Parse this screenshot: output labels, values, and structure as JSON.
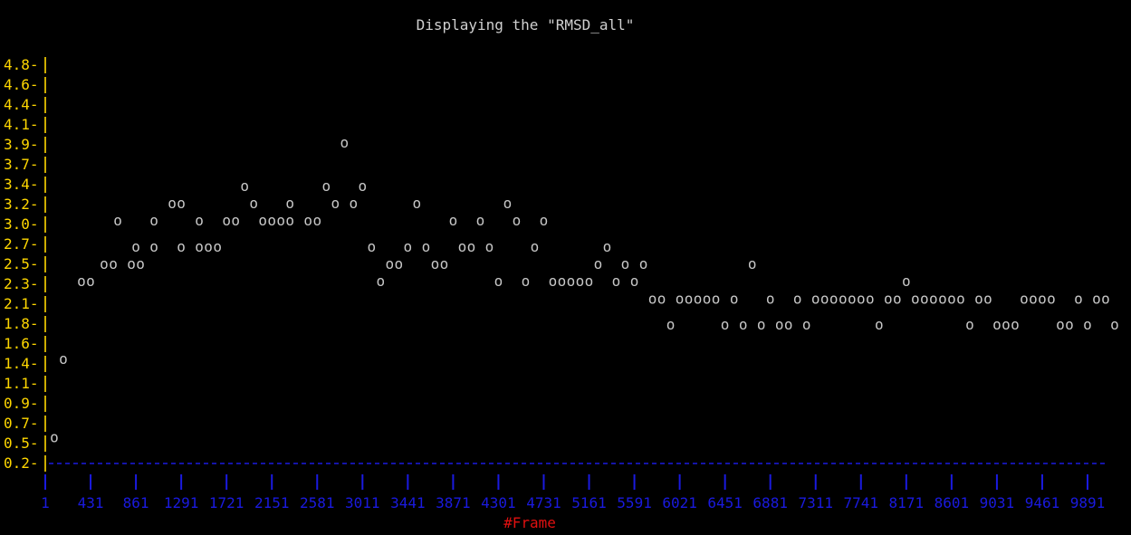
{
  "chart_data": {
    "type": "scatter",
    "title": "Displaying the \"RMSD_all\"",
    "xlabel": "#Frame",
    "ylabel": "",
    "marker": "o",
    "x_ticks": [
      "1",
      "431",
      "861",
      "1291",
      "1721",
      "2151",
      "2581",
      "3011",
      "3441",
      "3871",
      "4301",
      "4731",
      "5161",
      "5591",
      "6021",
      "6451",
      "6881",
      "7311",
      "7741",
      "8171",
      "8601",
      "9031",
      "9461",
      "9891"
    ],
    "y_ticks": [
      "4.8",
      "4.6",
      "4.4",
      "4.1",
      "3.9",
      "3.7",
      "3.4",
      "3.2",
      "3.0",
      "2.7",
      "2.5",
      "2.3",
      "2.1",
      "1.8",
      "1.6",
      "1.4",
      "1.1",
      "0.9",
      "0.7",
      "0.5",
      "0.2"
    ],
    "xlim": [
      1,
      10000
    ],
    "ylim": [
      0.2,
      4.8
    ],
    "grid": false,
    "colors": {
      "background": "#000000",
      "title": "#d0d0d0",
      "points": "#c8c8c8",
      "y_axis": "#ffd700",
      "x_axis": "#1a1adf",
      "xlabel": "#e01010"
    },
    "points": [
      {
        "x": 1,
        "y": 0.5
      },
      {
        "x": 87,
        "y": 1.4
      },
      {
        "x": 259,
        "y": 2.3
      },
      {
        "x": 345,
        "y": 2.3
      },
      {
        "x": 474,
        "y": 2.5
      },
      {
        "x": 560,
        "y": 2.5
      },
      {
        "x": 732,
        "y": 2.5
      },
      {
        "x": 818,
        "y": 2.5
      },
      {
        "x": 603,
        "y": 3.0
      },
      {
        "x": 947,
        "y": 3.0
      },
      {
        "x": 775,
        "y": 2.7
      },
      {
        "x": 947,
        "y": 2.7
      },
      {
        "x": 1119,
        "y": 3.2
      },
      {
        "x": 1205,
        "y": 3.2
      },
      {
        "x": 1205,
        "y": 2.7
      },
      {
        "x": 1377,
        "y": 3.0
      },
      {
        "x": 1377,
        "y": 2.7
      },
      {
        "x": 1463,
        "y": 2.7
      },
      {
        "x": 1549,
        "y": 2.7
      },
      {
        "x": 1635,
        "y": 3.0
      },
      {
        "x": 1721,
        "y": 3.0
      },
      {
        "x": 1807,
        "y": 3.4
      },
      {
        "x": 1893,
        "y": 3.2
      },
      {
        "x": 1979,
        "y": 3.0
      },
      {
        "x": 2065,
        "y": 3.0
      },
      {
        "x": 2151,
        "y": 3.0
      },
      {
        "x": 2237,
        "y": 3.0
      },
      {
        "x": 2237,
        "y": 3.2
      },
      {
        "x": 2409,
        "y": 3.0
      },
      {
        "x": 2495,
        "y": 3.0
      },
      {
        "x": 2581,
        "y": 3.4
      },
      {
        "x": 2667,
        "y": 3.2
      },
      {
        "x": 2753,
        "y": 3.9
      },
      {
        "x": 2839,
        "y": 3.2
      },
      {
        "x": 2925,
        "y": 3.4
      },
      {
        "x": 3011,
        "y": 2.7
      },
      {
        "x": 3097,
        "y": 2.3
      },
      {
        "x": 3183,
        "y": 2.5
      },
      {
        "x": 3269,
        "y": 2.5
      },
      {
        "x": 3355,
        "y": 2.7
      },
      {
        "x": 3441,
        "y": 3.2
      },
      {
        "x": 3527,
        "y": 2.7
      },
      {
        "x": 3613,
        "y": 2.5
      },
      {
        "x": 3699,
        "y": 2.5
      },
      {
        "x": 3785,
        "y": 3.0
      },
      {
        "x": 3871,
        "y": 2.7
      },
      {
        "x": 3957,
        "y": 2.7
      },
      {
        "x": 4043,
        "y": 3.0
      },
      {
        "x": 4129,
        "y": 2.7
      },
      {
        "x": 4215,
        "y": 2.3
      },
      {
        "x": 4301,
        "y": 3.2
      },
      {
        "x": 4387,
        "y": 3.0
      },
      {
        "x": 4473,
        "y": 2.3
      },
      {
        "x": 4559,
        "y": 2.7
      },
      {
        "x": 4645,
        "y": 3.0
      },
      {
        "x": 4731,
        "y": 2.3
      },
      {
        "x": 4817,
        "y": 2.3
      },
      {
        "x": 4903,
        "y": 2.3
      },
      {
        "x": 4989,
        "y": 2.3
      },
      {
        "x": 5075,
        "y": 2.3
      },
      {
        "x": 5161,
        "y": 2.5
      },
      {
        "x": 5247,
        "y": 2.7
      },
      {
        "x": 5333,
        "y": 2.3
      },
      {
        "x": 5419,
        "y": 2.5
      },
      {
        "x": 5505,
        "y": 2.3
      },
      {
        "x": 5591,
        "y": 2.5
      },
      {
        "x": 5677,
        "y": 2.1
      },
      {
        "x": 5763,
        "y": 2.1
      },
      {
        "x": 5849,
        "y": 1.8
      },
      {
        "x": 5935,
        "y": 2.1
      },
      {
        "x": 6021,
        "y": 2.1
      },
      {
        "x": 6107,
        "y": 2.1
      },
      {
        "x": 6193,
        "y": 2.1
      },
      {
        "x": 6279,
        "y": 2.1
      },
      {
        "x": 6365,
        "y": 1.8
      },
      {
        "x": 6451,
        "y": 2.1
      },
      {
        "x": 6537,
        "y": 1.8
      },
      {
        "x": 6623,
        "y": 2.5
      },
      {
        "x": 6709,
        "y": 1.8
      },
      {
        "x": 6795,
        "y": 2.1
      },
      {
        "x": 6881,
        "y": 1.8
      },
      {
        "x": 6967,
        "y": 1.8
      },
      {
        "x": 7053,
        "y": 2.1
      },
      {
        "x": 7139,
        "y": 1.8
      },
      {
        "x": 7225,
        "y": 2.1
      },
      {
        "x": 7311,
        "y": 2.1
      },
      {
        "x": 7397,
        "y": 2.1
      },
      {
        "x": 7483,
        "y": 2.1
      },
      {
        "x": 7569,
        "y": 2.1
      },
      {
        "x": 7655,
        "y": 2.1
      },
      {
        "x": 7741,
        "y": 2.1
      },
      {
        "x": 7827,
        "y": 1.8
      },
      {
        "x": 7913,
        "y": 2.1
      },
      {
        "x": 7999,
        "y": 2.1
      },
      {
        "x": 8085,
        "y": 2.3
      },
      {
        "x": 8171,
        "y": 2.1
      },
      {
        "x": 8257,
        "y": 2.1
      },
      {
        "x": 8343,
        "y": 2.1
      },
      {
        "x": 8429,
        "y": 2.1
      },
      {
        "x": 8515,
        "y": 2.1
      },
      {
        "x": 8601,
        "y": 2.1
      },
      {
        "x": 8687,
        "y": 1.8
      },
      {
        "x": 8773,
        "y": 2.1
      },
      {
        "x": 8859,
        "y": 2.1
      },
      {
        "x": 8945,
        "y": 1.8
      },
      {
        "x": 9031,
        "y": 1.8
      },
      {
        "x": 9117,
        "y": 1.8
      },
      {
        "x": 9203,
        "y": 2.1
      },
      {
        "x": 9289,
        "y": 2.1
      },
      {
        "x": 9375,
        "y": 2.1
      },
      {
        "x": 9461,
        "y": 2.1
      },
      {
        "x": 9547,
        "y": 1.8
      },
      {
        "x": 9633,
        "y": 1.8
      },
      {
        "x": 9719,
        "y": 2.1
      },
      {
        "x": 9805,
        "y": 1.8
      },
      {
        "x": 9891,
        "y": 2.1
      },
      {
        "x": 9977,
        "y": 2.1
      },
      {
        "x": 10063,
        "y": 1.8
      }
    ]
  }
}
